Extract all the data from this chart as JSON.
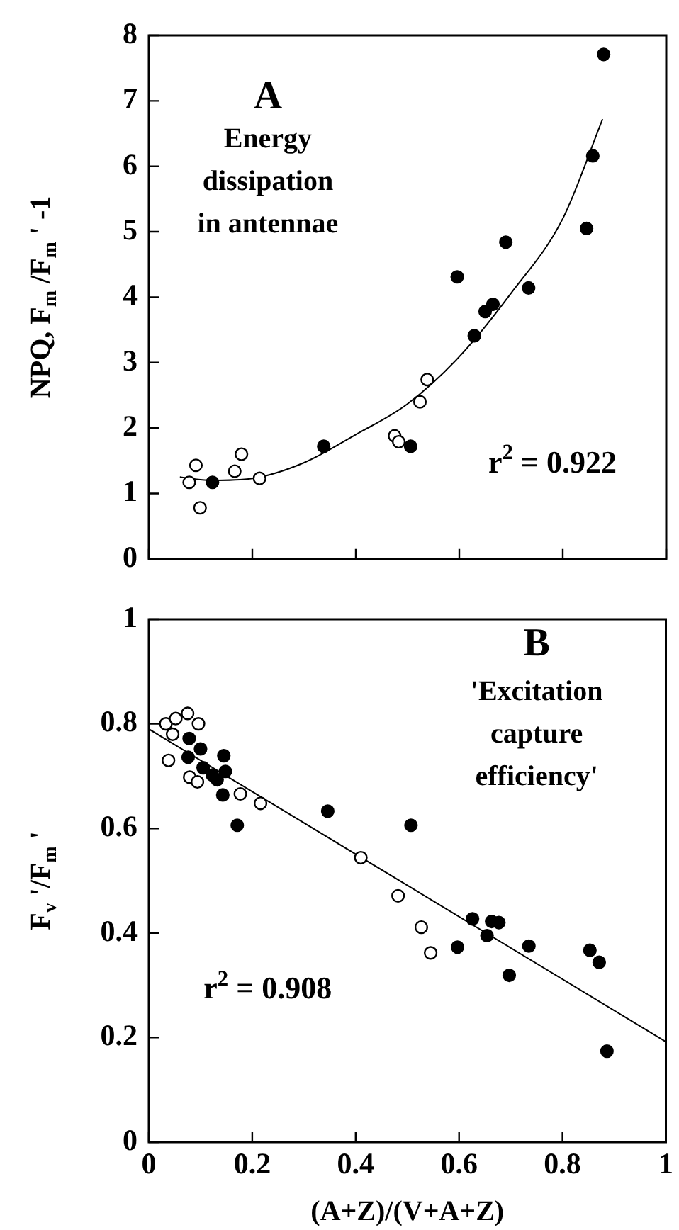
{
  "chart_data": [
    {
      "type": "scatter",
      "ylabel": "NPQ, F$_{m}$ /F$_{m}$ ' -1",
      "xlim": [
        0,
        1
      ],
      "xticks": [
        0,
        0.2,
        0.4,
        0.6,
        0.8,
        1
      ],
      "ylim": [
        0,
        8
      ],
      "yticks": [
        0,
        1,
        2,
        3,
        4,
        5,
        6,
        7,
        8
      ],
      "tick_labels": "y",
      "annotations": [
        "A",
        "Energy dissipation in antennae",
        "r$^{2}$ = 0.922"
      ],
      "series": [
        {
          "color": "#000000",
          "marker": "circle",
          "x": [
            0.123,
            0.338,
            0.506,
            0.596,
            0.629,
            0.65,
            0.665,
            0.69,
            0.734,
            0.846,
            0.858,
            0.879
          ],
          "values": [
            1.17,
            1.72,
            1.72,
            4.31,
            3.41,
            3.78,
            3.89,
            4.84,
            4.14,
            5.05,
            6.16,
            7.71
          ]
        },
        {
          "color": "#ffffff",
          "marker": "circle",
          "x": [
            0.078,
            0.091,
            0.099,
            0.166,
            0.179,
            0.214,
            0.475,
            0.483,
            0.524,
            0.538
          ],
          "values": [
            1.17,
            1.43,
            0.78,
            1.34,
            1.6,
            1.23,
            1.88,
            1.79,
            2.4,
            2.74
          ]
        },
        {
          "type": "line",
          "color": "#000000",
          "marker": "none",
          "x": [
            0.06,
            0.12,
            0.2,
            0.3,
            0.4,
            0.5,
            0.6,
            0.7,
            0.8,
            0.877
          ],
          "values": [
            1.25,
            1.2,
            1.23,
            1.47,
            1.9,
            2.37,
            3.09,
            4.06,
            5.2,
            6.72
          ]
        }
      ]
    },
    {
      "type": "scatter",
      "ylabel": "F$_{v}$ '/F$_{m}$ '",
      "xlabel": "(A+Z)/(V+A+Z)",
      "xlim": [
        0,
        1
      ],
      "xticks": [
        0,
        0.2,
        0.4,
        0.6,
        0.8,
        1
      ],
      "ylim": [
        0,
        1
      ],
      "yticks": [
        0,
        0.2,
        0.4,
        0.6,
        0.8,
        1
      ],
      "annotations": [
        "B",
        "'Excitation capture efficiency'",
        "r$^{2}$ = 0.908"
      ],
      "series": [
        {
          "color": "#000000",
          "marker": "circle",
          "x": [
            0.078,
            0.1,
            0.076,
            0.105,
            0.123,
            0.132,
            0.145,
            0.148,
            0.143,
            0.171,
            0.346,
            0.507,
            0.597,
            0.626,
            0.654,
            0.663,
            0.677,
            0.697,
            0.735,
            0.853,
            0.871,
            0.886
          ],
          "values": [
            0.772,
            0.752,
            0.736,
            0.716,
            0.702,
            0.693,
            0.739,
            0.709,
            0.664,
            0.606,
            0.633,
            0.606,
            0.373,
            0.427,
            0.395,
            0.422,
            0.42,
            0.319,
            0.375,
            0.367,
            0.344,
            0.174
          ]
        },
        {
          "color": "#ffffff",
          "marker": "circle",
          "x": [
            0.033,
            0.052,
            0.075,
            0.096,
            0.046,
            0.038,
            0.079,
            0.094,
            0.177,
            0.216,
            0.41,
            0.482,
            0.527,
            0.545
          ],
          "values": [
            0.8,
            0.81,
            0.82,
            0.8,
            0.78,
            0.73,
            0.698,
            0.689,
            0.666,
            0.648,
            0.544,
            0.471,
            0.411,
            0.362
          ]
        },
        {
          "type": "line",
          "color": "#000000",
          "marker": "none",
          "x": [
            0,
            1
          ],
          "values": [
            0.79,
            0.192
          ]
        }
      ]
    }
  ]
}
